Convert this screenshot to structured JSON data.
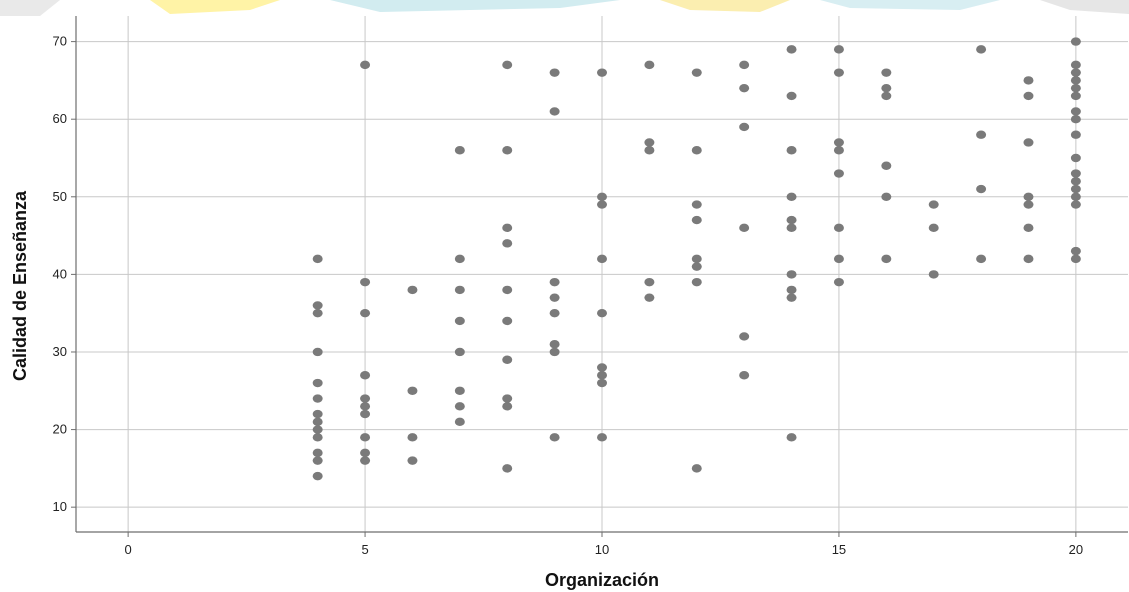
{
  "colors": {
    "point": "#7a7a7a",
    "grid": "#c8c8c8",
    "axis": "#6e6e6e",
    "banner": [
      "#f4e7a8",
      "#fff4a0",
      "#cde9ee",
      "#e6e6e6"
    ]
  },
  "chart_data": {
    "type": "scatter",
    "title": "",
    "xlabel": "Organización",
    "ylabel": "Calidad de Enseñanza",
    "xlim": [
      -1.1,
      21.1
    ],
    "ylim": [
      6.8,
      73.3
    ],
    "x_ticks": [
      0,
      5,
      10,
      15,
      20
    ],
    "y_ticks": [
      10,
      20,
      30,
      40,
      50,
      60,
      70
    ],
    "grid": true,
    "legend": "none",
    "points": [
      [
        4,
        42
      ],
      [
        4,
        36
      ],
      [
        4,
        35
      ],
      [
        4,
        30
      ],
      [
        4,
        26
      ],
      [
        4,
        24
      ],
      [
        4,
        22
      ],
      [
        4,
        21
      ],
      [
        4,
        20
      ],
      [
        4,
        19
      ],
      [
        4,
        17
      ],
      [
        4,
        16
      ],
      [
        4,
        14
      ],
      [
        5,
        67
      ],
      [
        5,
        39
      ],
      [
        5,
        35
      ],
      [
        5,
        27
      ],
      [
        5,
        24
      ],
      [
        5,
        23
      ],
      [
        5,
        22
      ],
      [
        5,
        19
      ],
      [
        5,
        17
      ],
      [
        5,
        16
      ],
      [
        6,
        38
      ],
      [
        6,
        25
      ],
      [
        6,
        19
      ],
      [
        6,
        16
      ],
      [
        7,
        56
      ],
      [
        7,
        42
      ],
      [
        7,
        38
      ],
      [
        7,
        34
      ],
      [
        7,
        30
      ],
      [
        7,
        25
      ],
      [
        7,
        23
      ],
      [
        7,
        21
      ],
      [
        8,
        67
      ],
      [
        8,
        56
      ],
      [
        8,
        46
      ],
      [
        8,
        44
      ],
      [
        8,
        38
      ],
      [
        8,
        34
      ],
      [
        8,
        29
      ],
      [
        8,
        24
      ],
      [
        8,
        23
      ],
      [
        8,
        15
      ],
      [
        9,
        66
      ],
      [
        9,
        61
      ],
      [
        9,
        39
      ],
      [
        9,
        37
      ],
      [
        9,
        35
      ],
      [
        9,
        31
      ],
      [
        9,
        30
      ],
      [
        9,
        19
      ],
      [
        10,
        66
      ],
      [
        10,
        50
      ],
      [
        10,
        49
      ],
      [
        10,
        42
      ],
      [
        10,
        35
      ],
      [
        10,
        28
      ],
      [
        10,
        27
      ],
      [
        10,
        26
      ],
      [
        10,
        19
      ],
      [
        11,
        67
      ],
      [
        11,
        57
      ],
      [
        11,
        56
      ],
      [
        11,
        39
      ],
      [
        11,
        37
      ],
      [
        12,
        66
      ],
      [
        12,
        56
      ],
      [
        12,
        49
      ],
      [
        12,
        47
      ],
      [
        12,
        42
      ],
      [
        12,
        41
      ],
      [
        12,
        39
      ],
      [
        12,
        15
      ],
      [
        13,
        67
      ],
      [
        13,
        64
      ],
      [
        13,
        59
      ],
      [
        13,
        46
      ],
      [
        13,
        32
      ],
      [
        13,
        27
      ],
      [
        14,
        69
      ],
      [
        14,
        63
      ],
      [
        14,
        56
      ],
      [
        14,
        50
      ],
      [
        14,
        47
      ],
      [
        14,
        46
      ],
      [
        14,
        40
      ],
      [
        14,
        38
      ],
      [
        14,
        37
      ],
      [
        14,
        19
      ],
      [
        15,
        69
      ],
      [
        15,
        66
      ],
      [
        15,
        57
      ],
      [
        15,
        56
      ],
      [
        15,
        53
      ],
      [
        15,
        46
      ],
      [
        15,
        42
      ],
      [
        15,
        39
      ],
      [
        16,
        66
      ],
      [
        16,
        64
      ],
      [
        16,
        63
      ],
      [
        16,
        54
      ],
      [
        16,
        50
      ],
      [
        16,
        42
      ],
      [
        17,
        49
      ],
      [
        17,
        46
      ],
      [
        17,
        40
      ],
      [
        18,
        69
      ],
      [
        18,
        58
      ],
      [
        18,
        51
      ],
      [
        18,
        42
      ],
      [
        19,
        65
      ],
      [
        19,
        63
      ],
      [
        19,
        57
      ],
      [
        19,
        50
      ],
      [
        19,
        49
      ],
      [
        19,
        46
      ],
      [
        19,
        42
      ],
      [
        20,
        70
      ],
      [
        20,
        67
      ],
      [
        20,
        66
      ],
      [
        20,
        65
      ],
      [
        20,
        64
      ],
      [
        20,
        63
      ],
      [
        20,
        61
      ],
      [
        20,
        60
      ],
      [
        20,
        58
      ],
      [
        20,
        55
      ],
      [
        20,
        53
      ],
      [
        20,
        52
      ],
      [
        20,
        51
      ],
      [
        20,
        50
      ],
      [
        20,
        49
      ],
      [
        20,
        43
      ],
      [
        20,
        42
      ]
    ]
  }
}
